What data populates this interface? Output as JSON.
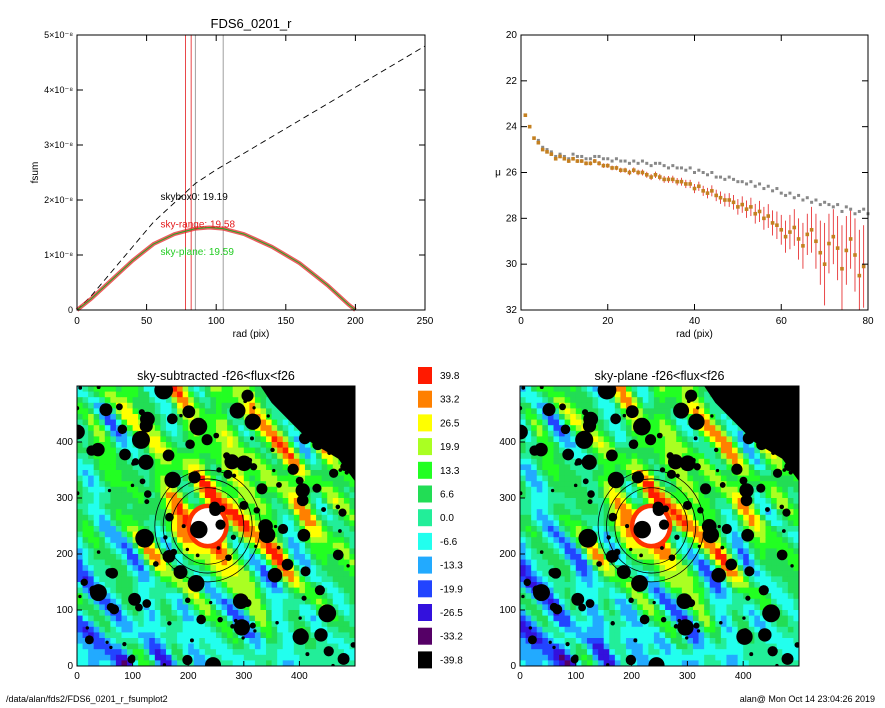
{
  "footer": {
    "path": "/data/alan/fds2/FDS6_0201_r_fsumplot2",
    "user": "alan@  Mon Oct 14 23:04:26 2019"
  },
  "chart_data": [
    {
      "id": "fsum",
      "type": "line",
      "title": "FDS6_0201_r",
      "xlabel": "rad (pix)",
      "ylabel": "fsum",
      "xlim": [
        0,
        250
      ],
      "ylim": [
        0,
        5e-08
      ],
      "xticks": [
        "0",
        "50",
        "100",
        "150",
        "200",
        "250"
      ],
      "yticks": [
        "0",
        "1×10⁻⁸",
        "2×10⁻⁸",
        "3×10⁻⁸",
        "4×10⁻⁸",
        "5×10⁻⁸"
      ],
      "yticks_values": [
        0,
        1e-08,
        2e-08,
        3e-08,
        4e-08,
        5e-08
      ],
      "colors": {
        "skybox0": "#000000",
        "sky_range": "#e41a1c",
        "sky_plane": "#22cc22"
      },
      "annotations": [
        {
          "text": "skybox0: 19.19",
          "color": "#000000",
          "x": 60,
          "y": 2e-08
        },
        {
          "text": "sky-range: 19.58",
          "color": "#e41a1c",
          "x": 60,
          "y": 1.5e-08
        },
        {
          "text": "sky-plane: 19.59",
          "color": "#22cc22",
          "x": 60,
          "y": 1e-08
        }
      ],
      "vlines": [
        {
          "x": 78,
          "color": "#e41a1c"
        },
        {
          "x": 82,
          "color": "#e41a1c"
        },
        {
          "x": 85,
          "color": "#888888"
        },
        {
          "x": 105,
          "color": "#888888"
        }
      ],
      "series": [
        {
          "style": "dashed",
          "color": "#000000",
          "x": [
            0,
            10,
            25,
            40,
            55,
            70,
            85,
            100,
            120,
            140,
            160,
            180,
            200,
            220,
            240,
            250
          ],
          "y": [
            0,
            2.5e-09,
            7e-09,
            1.15e-08,
            1.6e-08,
            1.95e-08,
            2.3e-08,
            2.55e-08,
            2.85e-08,
            3.15e-08,
            3.45e-08,
            3.75e-08,
            4.05e-08,
            4.35e-08,
            4.65e-08,
            4.8e-08
          ]
        },
        {
          "style": "band",
          "color": "#e41a1c",
          "x": [
            0,
            10,
            25,
            40,
            55,
            70,
            85,
            95,
            105,
            120,
            140,
            160,
            180,
            195,
            200
          ],
          "y": [
            0,
            2e-09,
            5.5e-09,
            9e-09,
            1.2e-08,
            1.38e-08,
            1.48e-08,
            1.5e-08,
            1.48e-08,
            1.38e-08,
            1.15e-08,
            8.5e-09,
            4.5e-09,
            1e-09,
            0
          ]
        },
        {
          "style": "solid",
          "color": "#22aa22",
          "x": [
            0,
            10,
            25,
            40,
            55,
            70,
            85,
            95,
            105,
            120,
            140,
            160,
            180,
            195,
            200
          ],
          "y": [
            0,
            2e-09,
            5.5e-09,
            9e-09,
            1.2e-08,
            1.38e-08,
            1.48e-08,
            1.5e-08,
            1.48e-08,
            1.38e-08,
            1.15e-08,
            8.5e-09,
            4.5e-09,
            1e-09,
            0
          ]
        }
      ]
    },
    {
      "id": "mu",
      "type": "scatter",
      "title": "",
      "xlabel": "rad (pix)",
      "ylabel": "μ",
      "xlim": [
        0,
        80
      ],
      "ylim": [
        32,
        20
      ],
      "xticks": [
        "0",
        "20",
        "40",
        "60",
        "80"
      ],
      "yticks": [
        "20",
        "22",
        "24",
        "26",
        "28",
        "30",
        "32"
      ],
      "colors": {
        "grey_points": "#888888",
        "profile_points": "#c48020",
        "errors": "#e41a1c"
      },
      "series": [
        {
          "name": "",
          "color": "#888888",
          "x": [
            1,
            2,
            3,
            4,
            5,
            6,
            7,
            8,
            9,
            10,
            11,
            12,
            13,
            14,
            15,
            16,
            17,
            18,
            19,
            20,
            21,
            22,
            23,
            24,
            25,
            26,
            27,
            28,
            29,
            30,
            31,
            32,
            33,
            34,
            35,
            36,
            37,
            38,
            39,
            40,
            41,
            42,
            43,
            44,
            45,
            46,
            47,
            48,
            49,
            50,
            51,
            52,
            53,
            54,
            55,
            56,
            57,
            58,
            59,
            60,
            61,
            62,
            63,
            64,
            65,
            66,
            67,
            68,
            69,
            70,
            71,
            72,
            73,
            74,
            75,
            76,
            77,
            78,
            79,
            80
          ],
          "y": [
            23.5,
            24.0,
            24.5,
            24.6,
            24.9,
            25.0,
            25.1,
            25.3,
            25.2,
            25.3,
            25.4,
            25.2,
            25.3,
            25.3,
            25.4,
            25.4,
            25.3,
            25.3,
            25.4,
            25.4,
            25.5,
            25.4,
            25.5,
            25.5,
            25.6,
            25.5,
            25.6,
            25.5,
            25.6,
            25.7,
            25.6,
            25.6,
            25.7,
            25.8,
            25.7,
            25.8,
            25.8,
            25.9,
            25.8,
            26.0,
            25.9,
            26.0,
            26.1,
            26.0,
            26.2,
            26.2,
            26.3,
            26.2,
            26.3,
            26.4,
            26.4,
            26.5,
            26.4,
            26.6,
            26.5,
            26.7,
            26.6,
            26.8,
            26.7,
            26.9,
            27.0,
            26.9,
            27.1,
            27.0,
            27.2,
            27.1,
            27.3,
            27.2,
            27.4,
            27.3,
            27.4,
            27.5,
            27.4,
            27.7,
            27.5,
            27.6,
            27.8,
            27.7,
            27.6,
            27.8
          ]
        },
        {
          "name": "",
          "color": "#c48020",
          "x": [
            1,
            2,
            3,
            4,
            5,
            6,
            7,
            8,
            9,
            10,
            11,
            12,
            13,
            14,
            15,
            16,
            17,
            18,
            19,
            20,
            21,
            22,
            23,
            24,
            25,
            26,
            27,
            28,
            29,
            30,
            31,
            32,
            33,
            34,
            35,
            36,
            37,
            38,
            39,
            40,
            41,
            42,
            43,
            44,
            45,
            46,
            47,
            48,
            49,
            50,
            51,
            52,
            53,
            54,
            55,
            56,
            57,
            58,
            59,
            60,
            61,
            62,
            63,
            64,
            65,
            66,
            67,
            68,
            69,
            70,
            71,
            72,
            73,
            74,
            75,
            76,
            77,
            78,
            79
          ],
          "y": [
            23.5,
            24.0,
            24.5,
            24.7,
            25.0,
            25.1,
            25.2,
            25.4,
            25.3,
            25.4,
            25.5,
            25.4,
            25.5,
            25.5,
            25.6,
            25.6,
            25.5,
            25.6,
            25.7,
            25.7,
            25.8,
            25.8,
            25.9,
            25.9,
            26.0,
            25.9,
            26.0,
            26.0,
            26.1,
            26.2,
            26.1,
            26.2,
            26.3,
            26.3,
            26.3,
            26.4,
            26.4,
            26.5,
            26.5,
            26.7,
            26.6,
            26.8,
            26.9,
            26.8,
            27.0,
            27.1,
            27.2,
            27.2,
            27.3,
            27.5,
            27.4,
            27.6,
            27.5,
            27.8,
            27.7,
            28.0,
            27.9,
            28.2,
            28.3,
            28.5,
            28.8,
            28.6,
            28.4,
            28.9,
            29.2,
            28.7,
            28.5,
            29.0,
            29.5,
            30.0,
            29.1,
            28.8,
            29.3,
            30.2,
            29.4,
            28.9,
            29.6,
            30.5,
            30.1
          ],
          "err": [
            0.05,
            0.05,
            0.06,
            0.06,
            0.06,
            0.06,
            0.07,
            0.07,
            0.07,
            0.07,
            0.08,
            0.08,
            0.08,
            0.08,
            0.09,
            0.09,
            0.09,
            0.1,
            0.1,
            0.1,
            0.1,
            0.1,
            0.11,
            0.11,
            0.12,
            0.12,
            0.12,
            0.13,
            0.13,
            0.13,
            0.14,
            0.14,
            0.15,
            0.15,
            0.16,
            0.16,
            0.17,
            0.18,
            0.18,
            0.2,
            0.2,
            0.22,
            0.23,
            0.24,
            0.25,
            0.27,
            0.28,
            0.3,
            0.32,
            0.34,
            0.36,
            0.38,
            0.4,
            0.43,
            0.46,
            0.5,
            0.52,
            0.55,
            0.6,
            0.65,
            0.7,
            0.75,
            0.8,
            0.9,
            1.0,
            0.9,
            1.0,
            1.2,
            1.4,
            1.8,
            1.3,
            1.2,
            1.4,
            1.9,
            1.5,
            1.3,
            1.6,
            2.0,
            1.8
          ]
        }
      ]
    },
    {
      "id": "map_sky_subtracted",
      "type": "heatmap",
      "title": "sky-subtracted -f26<flux<f26",
      "xlim": [
        0,
        500
      ],
      "ylim": [
        0,
        500
      ],
      "xticks": [
        "0",
        "100",
        "200",
        "300",
        "400"
      ],
      "yticks": [
        "0",
        "100",
        "200",
        "300",
        "400"
      ],
      "galaxy_center": [
        235,
        250
      ],
      "ellipse_radii": [
        65,
        80,
        95
      ],
      "variant": 0
    },
    {
      "id": "map_sky_plane",
      "type": "heatmap",
      "title": "sky-plane -f26<flux<f26",
      "xlim": [
        0,
        500
      ],
      "ylim": [
        0,
        500
      ],
      "xticks": [
        "0",
        "100",
        "200",
        "300",
        "400"
      ],
      "yticks": [
        "0",
        "100",
        "200",
        "300",
        "400"
      ],
      "galaxy_center": [
        235,
        250
      ],
      "ellipse_radii": [
        65,
        80,
        95
      ],
      "variant": 1
    },
    {
      "id": "colorbar",
      "type": "legend",
      "levels": [
        "39.8",
        "33.2",
        "26.5",
        "19.9",
        "13.3",
        "6.6",
        "0.0",
        "-6.6",
        "-13.3",
        "-19.9",
        "-26.5",
        "-33.2",
        "-39.8"
      ],
      "colors": [
        "#ff1a00",
        "#ff8000",
        "#ffff00",
        "#aaff22",
        "#22ff22",
        "#22dd55",
        "#22ee99",
        "#22ffee",
        "#22aaff",
        "#2244ff",
        "#3311dd",
        "#550066",
        "#000000"
      ]
    }
  ]
}
